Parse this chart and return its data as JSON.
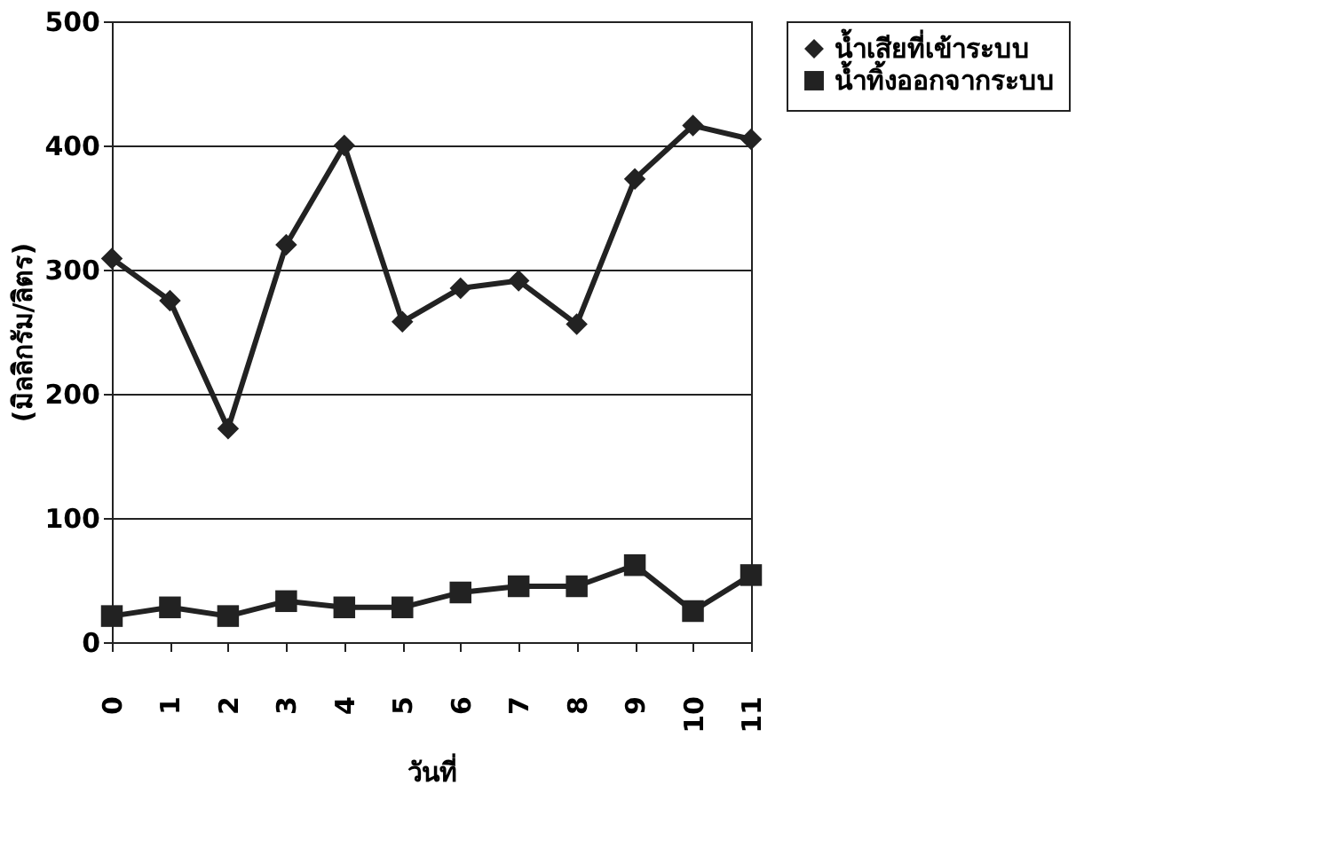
{
  "chart_data": {
    "type": "line",
    "xlabel": "วันที่",
    "ylabel": "(มิลลิกรัม/ลิตร)",
    "categories": [
      "0",
      "1",
      "2",
      "3",
      "4",
      "5",
      "6",
      "7",
      "8",
      "9",
      "10",
      "11"
    ],
    "series": [
      {
        "name": "น้ำเสียที่เข้าระบบ",
        "color": "#222222",
        "marker": "diamond",
        "values": [
          309,
          275,
          172,
          320,
          400,
          258,
          285,
          291,
          256,
          373,
          416,
          405
        ]
      },
      {
        "name": "น้ำทิ้งออกจากระบบ",
        "color": "#222222",
        "marker": "square",
        "values": [
          21,
          28,
          21,
          33,
          28,
          28,
          40,
          45,
          45,
          62,
          25,
          54
        ]
      }
    ],
    "ylim": [
      0,
      500
    ],
    "yticks": [
      0,
      100,
      200,
      300,
      400,
      500
    ],
    "grid": "y",
    "legend": "right",
    "line_style": "solid"
  }
}
